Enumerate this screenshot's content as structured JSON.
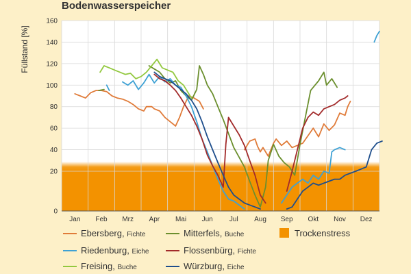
{
  "chart_data": {
    "type": "line",
    "title": "Bodenwasserspeicher",
    "ylabel": "Füllstand [%]",
    "xlabel": "",
    "categories": [
      "Jan",
      "Feb",
      "Mrz",
      "Apr",
      "Mai",
      "Jun",
      "Jul",
      "Aug",
      "Sep",
      "Okt",
      "Nov",
      "Dez"
    ],
    "yticks": [
      0,
      20,
      40,
      60,
      80,
      100,
      120,
      140,
      160
    ],
    "yticks_display": [
      "0",
      "20",
      "40",
      "60",
      "80",
      "100",
      "120",
      "140",
      "160"
    ],
    "ylim": [
      0,
      160
    ],
    "grid": true,
    "legend_position": "bottom",
    "stress_band": {
      "name": "Trockenstress",
      "from": 0,
      "to": 20,
      "color": "#f39200"
    },
    "series": [
      {
        "name": "Ebersberg",
        "note": "Fichte",
        "color": "#e07b39",
        "points": [
          [
            0.0,
            92
          ],
          [
            0.2,
            90
          ],
          [
            0.4,
            88
          ],
          [
            0.6,
            93
          ],
          [
            0.8,
            95
          ],
          [
            1.0,
            95
          ],
          [
            1.2,
            94
          ],
          [
            1.4,
            90
          ],
          [
            1.6,
            88
          ],
          [
            1.8,
            87
          ],
          [
            2.0,
            85
          ],
          [
            2.2,
            82
          ],
          [
            2.4,
            78
          ],
          [
            2.6,
            76
          ],
          [
            2.7,
            80
          ],
          [
            2.9,
            80
          ],
          [
            3.0,
            78
          ],
          [
            3.2,
            76
          ],
          [
            3.4,
            70
          ],
          [
            3.6,
            66
          ],
          [
            3.8,
            62
          ],
          [
            3.95,
            70
          ],
          [
            4.1,
            80
          ],
          [
            4.3,
            90
          ],
          [
            4.5,
            88
          ],
          [
            4.7,
            85
          ],
          [
            4.85,
            78
          ],
          [
            6.4,
            40
          ],
          [
            6.6,
            48
          ],
          [
            6.8,
            50
          ],
          [
            6.9,
            43
          ],
          [
            7.0,
            38
          ],
          [
            7.1,
            42
          ],
          [
            7.3,
            34
          ],
          [
            7.5,
            46
          ],
          [
            7.6,
            50
          ],
          [
            7.8,
            44
          ],
          [
            8.0,
            48
          ],
          [
            8.2,
            42
          ],
          [
            8.4,
            44
          ],
          [
            8.6,
            46
          ],
          [
            8.8,
            53
          ],
          [
            9.0,
            60
          ],
          [
            9.2,
            52
          ],
          [
            9.4,
            64
          ],
          [
            9.6,
            58
          ],
          [
            9.8,
            63
          ],
          [
            10.0,
            74
          ],
          [
            10.2,
            72
          ],
          [
            10.3,
            80
          ],
          [
            10.4,
            85
          ]
        ]
      },
      {
        "name": "Mitterfels",
        "note": "Buche",
        "color": "#6b8f2e",
        "points": [
          [
            0.9,
            95
          ],
          [
            1.1,
            96
          ],
          [
            2.8,
            118
          ],
          [
            3.0,
            115
          ],
          [
            3.2,
            112
          ],
          [
            3.4,
            106
          ],
          [
            3.6,
            102
          ],
          [
            3.8,
            104
          ],
          [
            4.0,
            95
          ],
          [
            4.2,
            90
          ],
          [
            4.4,
            86
          ],
          [
            4.6,
            96
          ],
          [
            4.7,
            118
          ],
          [
            4.85,
            110
          ],
          [
            5.0,
            100
          ],
          [
            5.2,
            92
          ],
          [
            5.4,
            80
          ],
          [
            5.6,
            68
          ],
          [
            5.8,
            55
          ],
          [
            6.0,
            42
          ],
          [
            6.2,
            33
          ],
          [
            6.4,
            24
          ],
          [
            6.6,
            15
          ],
          [
            6.8,
            8
          ],
          [
            7.0,
            2
          ],
          [
            7.2,
            12
          ],
          [
            7.3,
            30
          ],
          [
            7.5,
            45
          ],
          [
            7.7,
            34
          ],
          [
            7.9,
            28
          ],
          [
            8.1,
            24
          ],
          [
            8.3,
            18
          ],
          [
            8.5,
            45
          ],
          [
            8.7,
            70
          ],
          [
            8.9,
            95
          ],
          [
            9.0,
            98
          ],
          [
            9.2,
            104
          ],
          [
            9.4,
            112
          ],
          [
            9.5,
            100
          ],
          [
            9.7,
            106
          ],
          [
            9.9,
            98
          ]
        ]
      },
      {
        "name": "Riedenburg",
        "note": "Eiche",
        "color": "#3ea1d4",
        "points": [
          [
            1.2,
            100
          ],
          [
            1.3,
            95
          ],
          [
            1.8,
            103
          ],
          [
            2.0,
            100
          ],
          [
            2.2,
            104
          ],
          [
            2.4,
            96
          ],
          [
            2.6,
            102
          ],
          [
            2.8,
            110
          ],
          [
            3.0,
            102
          ],
          [
            3.2,
            108
          ],
          [
            3.4,
            103
          ],
          [
            3.6,
            106
          ],
          [
            3.8,
            100
          ],
          [
            4.0,
            98
          ],
          [
            4.2,
            90
          ],
          [
            4.4,
            80
          ],
          [
            4.6,
            66
          ],
          [
            4.8,
            50
          ],
          [
            5.0,
            38
          ],
          [
            5.2,
            25
          ],
          [
            5.4,
            16
          ],
          [
            5.6,
            10
          ],
          [
            5.8,
            6
          ],
          [
            6.0,
            5
          ],
          [
            6.2,
            3
          ],
          [
            6.4,
            1
          ],
          [
            7.8,
            4
          ],
          [
            8.0,
            8
          ],
          [
            8.2,
            12
          ],
          [
            8.4,
            14
          ],
          [
            8.6,
            16
          ],
          [
            8.8,
            14
          ],
          [
            9.0,
            18
          ],
          [
            9.2,
            16
          ],
          [
            9.4,
            20
          ],
          [
            9.6,
            19
          ],
          [
            9.7,
            38
          ],
          [
            9.8,
            40
          ],
          [
            10.0,
            42
          ],
          [
            10.2,
            40
          ],
          [
            11.3,
            140
          ],
          [
            11.4,
            146
          ],
          [
            11.5,
            150
          ]
        ]
      },
      {
        "name": "Flossenbürg",
        "note": "Fichte",
        "color": "#a22a2a",
        "points": [
          [
            3.0,
            110
          ],
          [
            3.2,
            106
          ],
          [
            3.4,
            104
          ],
          [
            3.6,
            100
          ],
          [
            3.8,
            95
          ],
          [
            4.0,
            88
          ],
          [
            4.2,
            80
          ],
          [
            4.4,
            72
          ],
          [
            4.6,
            62
          ],
          [
            4.8,
            50
          ],
          [
            5.0,
            35
          ],
          [
            5.2,
            25
          ],
          [
            5.4,
            18
          ],
          [
            5.6,
            12
          ],
          [
            5.7,
            45
          ],
          [
            5.8,
            70
          ],
          [
            6.0,
            62
          ],
          [
            6.2,
            54
          ],
          [
            6.4,
            44
          ],
          [
            6.6,
            30
          ],
          [
            6.8,
            18
          ],
          [
            7.0,
            8
          ],
          [
            7.2,
            4
          ],
          [
            8.0,
            10
          ],
          [
            8.2,
            20
          ],
          [
            8.4,
            40
          ],
          [
            8.6,
            60
          ],
          [
            8.8,
            70
          ],
          [
            9.0,
            75
          ],
          [
            9.2,
            72
          ],
          [
            9.4,
            78
          ],
          [
            9.6,
            80
          ],
          [
            9.8,
            82
          ],
          [
            10.0,
            86
          ],
          [
            10.2,
            88
          ],
          [
            10.3,
            90
          ]
        ]
      },
      {
        "name": "Freising",
        "note": "Buche",
        "color": "#92c83e",
        "points": [
          [
            0.95,
            112
          ],
          [
            1.1,
            118
          ],
          [
            1.3,
            116
          ],
          [
            1.5,
            114
          ],
          [
            1.7,
            112
          ],
          [
            1.9,
            110
          ],
          [
            2.1,
            111
          ],
          [
            2.3,
            106
          ],
          [
            2.5,
            108
          ],
          [
            2.7,
            112
          ],
          [
            2.9,
            118
          ],
          [
            3.1,
            124
          ],
          [
            3.3,
            116
          ],
          [
            3.5,
            114
          ],
          [
            3.7,
            112
          ],
          [
            3.9,
            104
          ],
          [
            4.1,
            100
          ],
          [
            4.3,
            92
          ],
          [
            4.4,
            88
          ]
        ]
      },
      {
        "name": "Würzburg",
        "note": "Eiche",
        "color": "#1e4e8c",
        "points": [
          [
            3.0,
            112
          ],
          [
            3.2,
            108
          ],
          [
            3.4,
            106
          ],
          [
            3.6,
            104
          ],
          [
            3.8,
            100
          ],
          [
            4.0,
            96
          ],
          [
            4.2,
            92
          ],
          [
            4.4,
            86
          ],
          [
            4.6,
            78
          ],
          [
            4.8,
            66
          ],
          [
            5.0,
            52
          ],
          [
            5.2,
            40
          ],
          [
            5.4,
            28
          ],
          [
            5.6,
            18
          ],
          [
            5.8,
            12
          ],
          [
            6.0,
            8
          ],
          [
            6.2,
            6
          ],
          [
            6.4,
            4
          ],
          [
            6.6,
            3
          ],
          [
            6.8,
            2
          ],
          [
            7.0,
            1
          ],
          [
            7.5,
            0
          ],
          [
            8.0,
            1
          ],
          [
            8.2,
            2
          ],
          [
            8.4,
            6
          ],
          [
            8.6,
            10
          ],
          [
            8.8,
            12
          ],
          [
            9.0,
            14
          ],
          [
            9.2,
            13
          ],
          [
            9.4,
            14
          ],
          [
            9.6,
            15
          ],
          [
            9.8,
            16
          ],
          [
            10.0,
            16
          ],
          [
            10.2,
            18
          ],
          [
            10.6,
            20
          ],
          [
            10.8,
            22
          ],
          [
            11.0,
            24
          ],
          [
            11.2,
            40
          ],
          [
            11.4,
            46
          ],
          [
            11.6,
            48
          ]
        ]
      }
    ]
  }
}
